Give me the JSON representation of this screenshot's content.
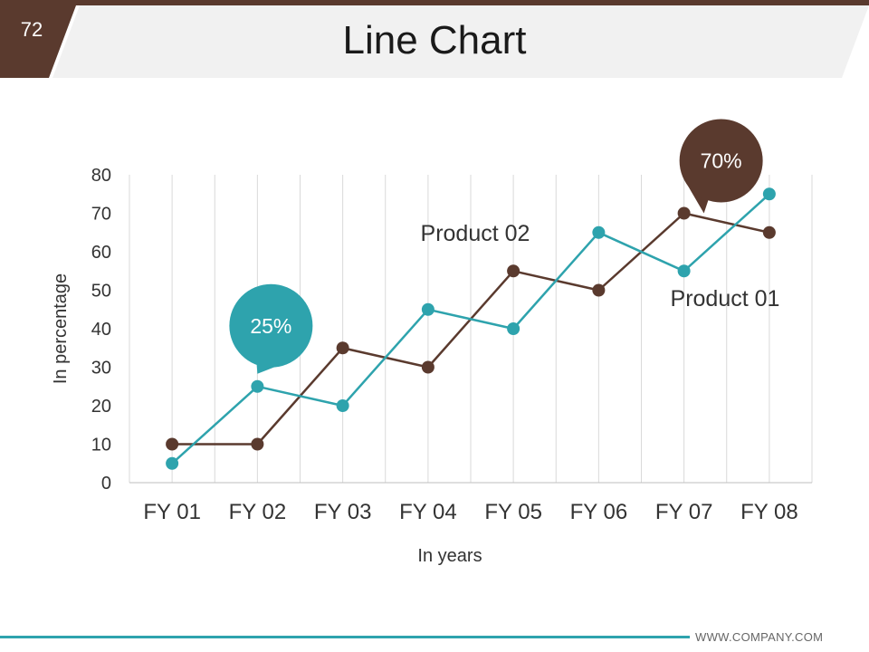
{
  "slide": {
    "number": "72",
    "title": "Line Chart",
    "footer": "WWW.COMPANY.COM"
  },
  "colors": {
    "brown": "#5a3a2e",
    "teal": "#2ea3ad",
    "band": "#f1f1f1"
  },
  "chart_data": {
    "type": "line",
    "categories": [
      "FY 01",
      "FY 02",
      "FY 03",
      "FY 04",
      "FY 05",
      "FY 06",
      "FY 07",
      "FY 08"
    ],
    "series": [
      {
        "name": "Product 01",
        "color": "#5a3a2e",
        "values": [
          10,
          10,
          35,
          30,
          55,
          50,
          70,
          65
        ]
      },
      {
        "name": "Product 02",
        "color": "#2ea3ad",
        "values": [
          5,
          25,
          20,
          45,
          40,
          65,
          55,
          75
        ]
      }
    ],
    "xlabel": "In years",
    "ylabel": "In percentage",
    "ylim": [
      0,
      80
    ],
    "yticks": [
      0,
      10,
      20,
      30,
      40,
      50,
      60,
      70,
      80
    ],
    "grid": "vertical",
    "callouts": [
      {
        "label": "25%",
        "series": "Product 02",
        "category": "FY 02",
        "color": "#2ea3ad"
      },
      {
        "label": "70%",
        "series": "Product 01",
        "category": "FY 07",
        "color": "#5a3a2e"
      }
    ]
  }
}
